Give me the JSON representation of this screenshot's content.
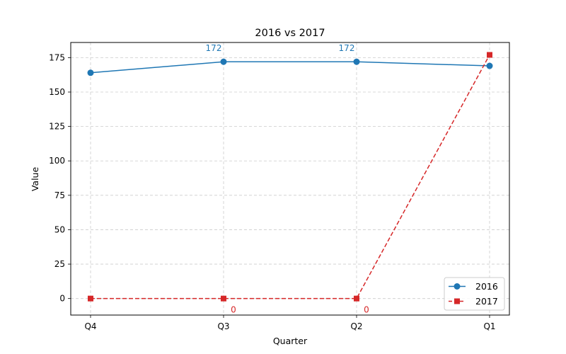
{
  "chart_data": {
    "type": "line",
    "title": "2016 vs 2017",
    "xlabel": "Quarter",
    "ylabel": "Value",
    "categories": [
      "Q4",
      "Q3",
      "Q2",
      "Q1"
    ],
    "ylim": [
      -12,
      186
    ],
    "yticks": [
      0,
      25,
      50,
      75,
      100,
      125,
      150,
      175
    ],
    "grid": true,
    "legend_position": "bottom-right",
    "series": [
      {
        "name": "2016",
        "values": [
          164,
          172,
          172,
          169
        ],
        "color": "#1f77b4",
        "marker": "circle",
        "line_style": "solid",
        "data_labels": [
          null,
          "172",
          "172",
          null
        ]
      },
      {
        "name": "2017",
        "values": [
          0,
          0,
          0,
          177
        ],
        "color": "#d62728",
        "marker": "square",
        "line_style": "dashed",
        "data_labels": [
          null,
          "0",
          "0",
          null
        ]
      }
    ]
  }
}
